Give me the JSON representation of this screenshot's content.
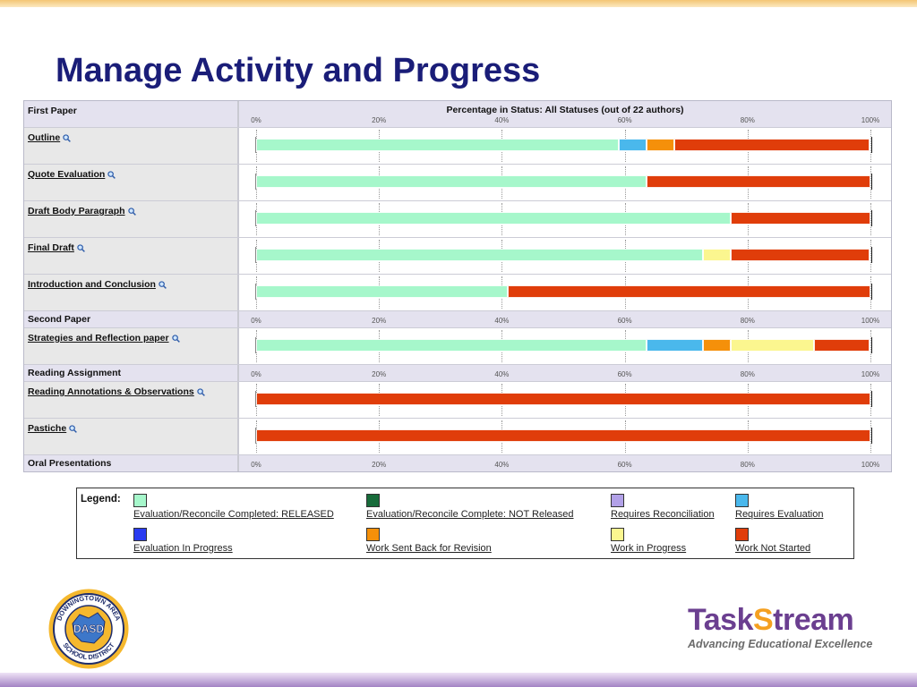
{
  "slide": {
    "title": "Manage Activity and Progress"
  },
  "report": {
    "chart_title": "Percentage in Status: All Statuses (out of 22 authors)",
    "ticks": [
      "0%",
      "20%",
      "40%",
      "60%",
      "80%",
      "100%"
    ],
    "status_colors": {
      "released": "#a6f7cb",
      "not_released": "#176b3a",
      "requires_reconciliation": "#b2a1e8",
      "requires_evaluation": "#4ab8ec",
      "evaluation_in_progress": "#2a3bf0",
      "sent_back": "#f5900a",
      "work_in_progress": "#fbf68f",
      "not_started": "#e03d0a"
    },
    "sections": [
      {
        "name": "First Paper",
        "items": [
          {
            "name": "Outline",
            "segments": [
              {
                "status": "released",
                "percent": 59.1
              },
              {
                "status": "requires_evaluation",
                "percent": 4.5
              },
              {
                "status": "sent_back",
                "percent": 4.5
              },
              {
                "status": "not_started",
                "percent": 31.8
              }
            ]
          },
          {
            "name": "Quote Evaluation",
            "segments": [
              {
                "status": "released",
                "percent": 63.6
              },
              {
                "status": "not_started",
                "percent": 36.4
              }
            ]
          },
          {
            "name": "Draft Body Paragraph",
            "segments": [
              {
                "status": "released",
                "percent": 77.3
              },
              {
                "status": "not_started",
                "percent": 22.7
              }
            ]
          },
          {
            "name": "Final Draft",
            "segments": [
              {
                "status": "released",
                "percent": 72.7
              },
              {
                "status": "work_in_progress",
                "percent": 4.5
              },
              {
                "status": "not_started",
                "percent": 22.7
              }
            ]
          },
          {
            "name": "Introduction and Conclusion",
            "segments": [
              {
                "status": "released",
                "percent": 40.9
              },
              {
                "status": "not_started",
                "percent": 59.1
              }
            ]
          }
        ]
      },
      {
        "name": "Second Paper",
        "items": [
          {
            "name": "Strategies and Reflection paper",
            "segments": [
              {
                "status": "released",
                "percent": 63.6
              },
              {
                "status": "requires_evaluation",
                "percent": 9.1
              },
              {
                "status": "sent_back",
                "percent": 4.5
              },
              {
                "status": "work_in_progress",
                "percent": 13.6
              },
              {
                "status": "not_started",
                "percent": 9.1
              }
            ]
          }
        ]
      },
      {
        "name": "Reading Assignment",
        "items": [
          {
            "name": "Reading Annotations & Observations",
            "segments": [
              {
                "status": "not_started",
                "percent": 100
              }
            ]
          },
          {
            "name": "Pastiche",
            "segments": [
              {
                "status": "not_started",
                "percent": 100
              }
            ]
          }
        ]
      },
      {
        "name": "Oral Presentations",
        "items": []
      }
    ]
  },
  "legend": {
    "title": "Legend:",
    "items": [
      {
        "label": "Evaluation/Reconcile Completed: RELEASED",
        "color": "#a6f7cb"
      },
      {
        "label": "Evaluation/Reconcile Complete: NOT Released",
        "color": "#176b3a"
      },
      {
        "label": "Requires Reconciliation",
        "color": "#b2a1e8"
      },
      {
        "label": "Requires Evaluation",
        "color": "#4ab8ec"
      },
      {
        "label": "Evaluation In Progress",
        "color": "#2a3bf0"
      },
      {
        "label": "Work Sent Back for Revision",
        "color": "#f5900a"
      },
      {
        "label": "Work in Progress",
        "color": "#fbf68f"
      },
      {
        "label": "Work Not Started",
        "color": "#e03d0a"
      }
    ]
  },
  "logos": {
    "district": {
      "ring_text": "DOWNINGTOWN AREA SCHOOL DISTRICT",
      "center_text": "DASD"
    },
    "taskstream": {
      "name": "TaskStream",
      "tagline": "Advancing Educational Excellence"
    }
  }
}
